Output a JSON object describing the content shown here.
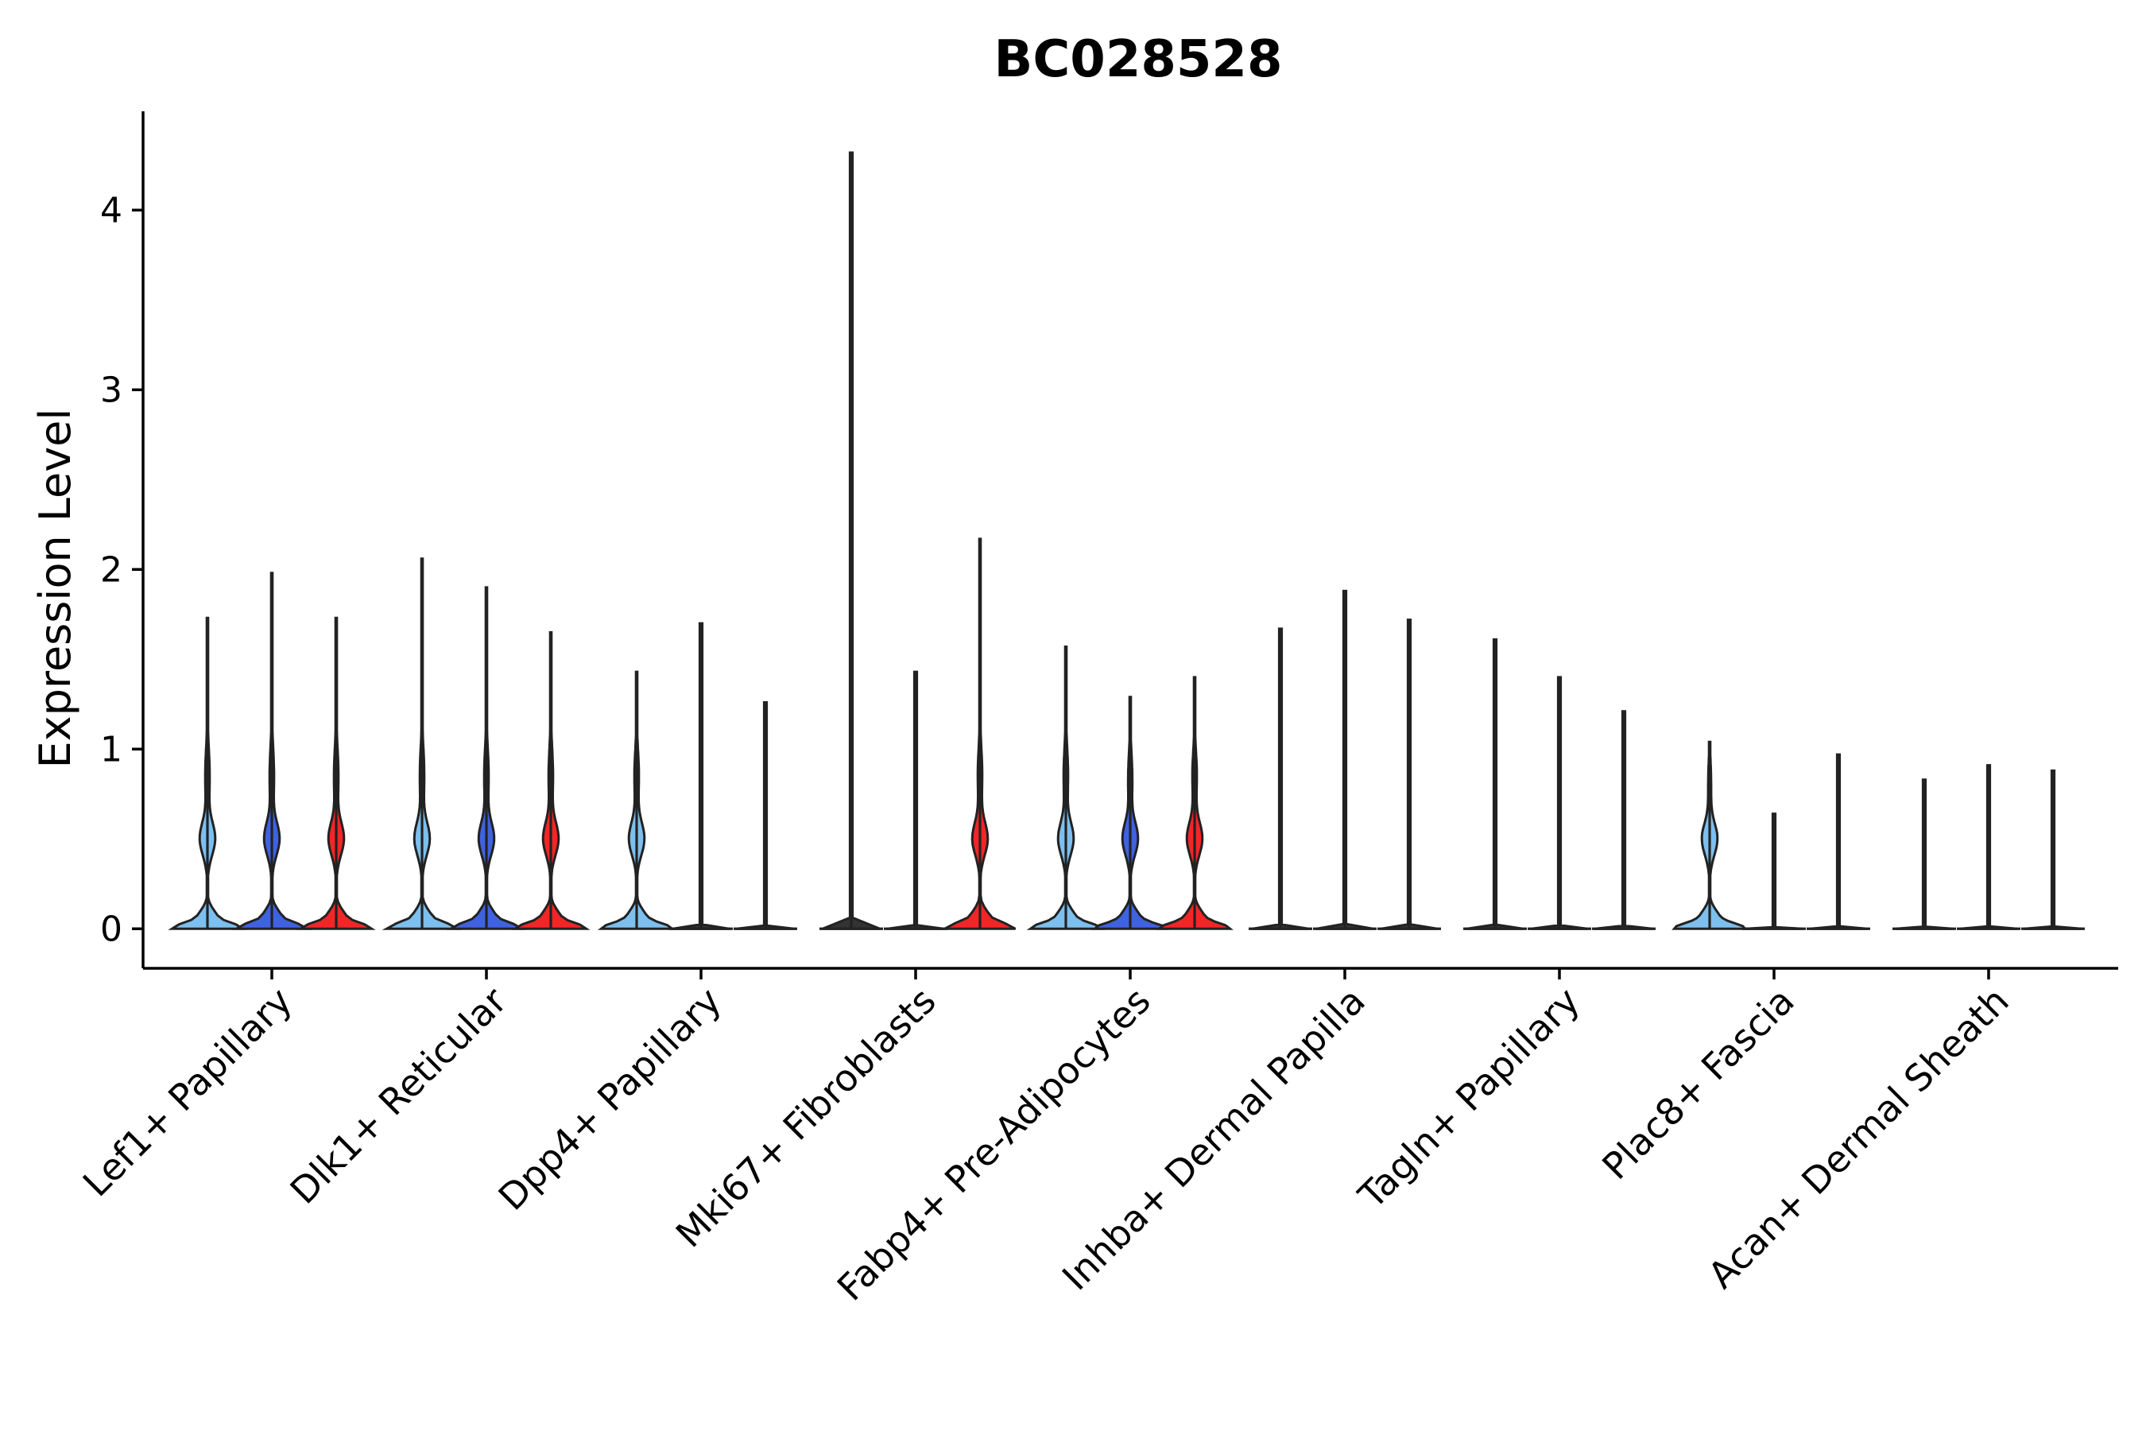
{
  "chart_data": {
    "type": "violin",
    "title": "BC028528",
    "xlabel": "",
    "ylabel": "Expression Level",
    "ylim": [
      -0.22,
      4.55
    ],
    "yticks": [
      0,
      1,
      2,
      3,
      4
    ],
    "categories": [
      "Lef1+ Papillary",
      "Dlk1+ Reticular",
      "Dpp4+ Papillary",
      "Mki67+ Fibroblasts",
      "Fabp4+ Pre-Adipocytes",
      "Inhba+ Dermal Papilla",
      "Tagln+ Papillary",
      "Plac8+ Fascia",
      "Acan+ Dermal Sheath"
    ],
    "series": [
      {
        "name": "group-1",
        "color": "#7dbfee",
        "max_values": [
          1.73,
          2.06,
          1.43,
          4.32,
          1.57,
          1.67,
          1.61,
          1.04,
          0.83
        ]
      },
      {
        "name": "group-2",
        "color": "#3f62e0",
        "max_values": [
          1.98,
          1.9,
          1.7,
          1.43,
          1.29,
          1.88,
          1.4,
          0.64,
          0.91
        ]
      },
      {
        "name": "group-3",
        "color": "#f22626",
        "max_values": [
          1.73,
          1.65,
          1.26,
          2.17,
          1.4,
          1.72,
          1.21,
          0.97,
          0.88
        ]
      }
    ],
    "violin_shape": {
      "filled": [
        [
          true,
          true,
          true
        ],
        [
          true,
          true,
          true
        ],
        [
          true,
          false,
          false
        ],
        [
          false,
          false,
          true
        ],
        [
          true,
          true,
          true
        ],
        [
          false,
          false,
          false
        ],
        [
          false,
          false,
          false
        ],
        [
          true,
          false,
          false
        ],
        [
          false,
          false,
          false
        ]
      ]
    },
    "legend": "none",
    "grid": false
  }
}
